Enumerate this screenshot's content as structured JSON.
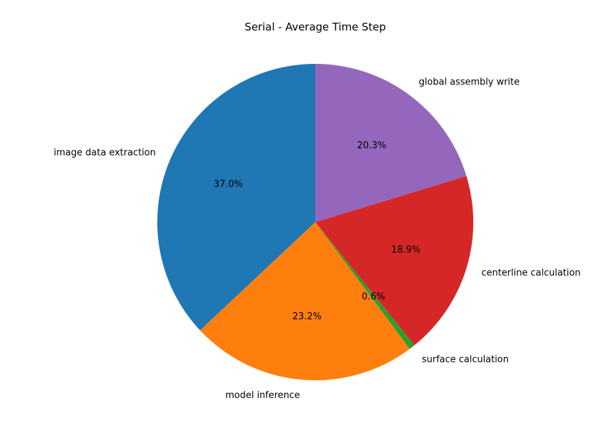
{
  "chart_data": {
    "type": "pie",
    "title": "Serial - Average Time Step",
    "start_angle_deg": 90,
    "direction": "counterclockwise",
    "slices": [
      {
        "label": "image data extraction",
        "value": 37.0,
        "pct_label": "37.0%",
        "color": "#1f77b4"
      },
      {
        "label": "model inference",
        "value": 23.2,
        "pct_label": "23.2%",
        "color": "#ff7f0e"
      },
      {
        "label": "surface calculation",
        "value": 0.6,
        "pct_label": "0.6%",
        "color": "#2ca02c"
      },
      {
        "label": "centerline calculation",
        "value": 18.9,
        "pct_label": "18.9%",
        "color": "#d62728"
      },
      {
        "label": "global assembly write",
        "value": 20.3,
        "pct_label": "20.3%",
        "color": "#9467bd"
      }
    ]
  }
}
